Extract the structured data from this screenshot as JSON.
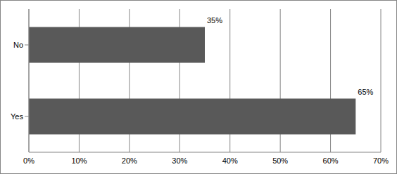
{
  "chart_data": {
    "type": "bar",
    "orientation": "horizontal",
    "categories": [
      "No",
      "Yes"
    ],
    "values": [
      35,
      65
    ],
    "value_labels": [
      "35%",
      "65%"
    ],
    "data_labels": true,
    "color": "#595959",
    "xlim": [
      0,
      70
    ],
    "xticks": [
      {
        "value": 0,
        "label": "0%"
      },
      {
        "value": 10,
        "label": "10%"
      },
      {
        "value": 20,
        "label": "20%"
      },
      {
        "value": 30,
        "label": "30%"
      },
      {
        "value": 40,
        "label": "40%"
      },
      {
        "value": 50,
        "label": "50%"
      },
      {
        "value": 60,
        "label": "60%"
      },
      {
        "value": 70,
        "label": "70%"
      }
    ],
    "grid": true
  }
}
